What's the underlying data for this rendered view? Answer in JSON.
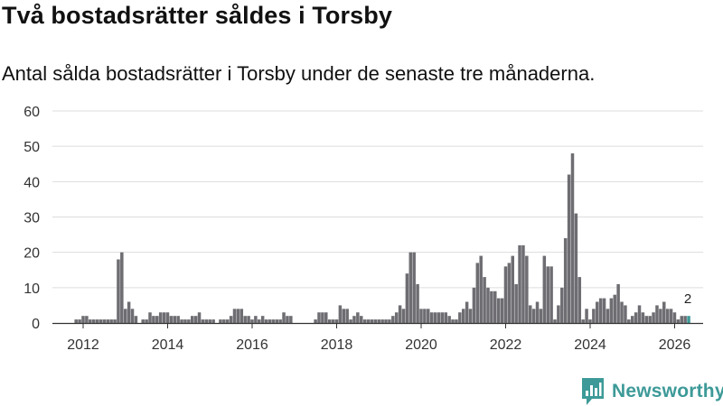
{
  "header": {
    "title": "Två bostadsrätter såldes i Torsby",
    "subtitle": "Antal sålda bostadsrätter i Torsby under de senaste tre månaderna."
  },
  "brand": {
    "name": "Newsworthy",
    "color": "#3d9a98"
  },
  "colors": {
    "bar": "#6e6d72",
    "highlight": "#3d9a98",
    "grid": "#dddddd",
    "axis": "#333333"
  },
  "chart_data": {
    "type": "bar",
    "title": "Två bostadsrätter såldes i Torsby",
    "subtitle": "Antal sålda bostadsrätter i Torsby under de senaste tre månaderna.",
    "xlabel": "",
    "ylabel": "",
    "ylim": [
      0,
      60
    ],
    "yticks": [
      0,
      10,
      20,
      30,
      40,
      50,
      60
    ],
    "xticks": [
      2012,
      2014,
      2016,
      2018,
      2020,
      2022,
      2024,
      2026
    ],
    "x_start": 2011.833,
    "x_step": 0.08333,
    "grid": true,
    "legend": "none",
    "highlight_label": "2",
    "values": [
      1,
      1,
      2,
      2,
      1,
      1,
      1,
      1,
      1,
      1,
      1,
      1,
      18,
      20,
      4,
      6,
      4,
      2,
      0,
      1,
      1,
      3,
      2,
      2,
      3,
      3,
      3,
      2,
      2,
      2,
      1,
      1,
      1,
      2,
      2,
      3,
      1,
      1,
      1,
      1,
      0,
      1,
      1,
      1,
      2,
      4,
      4,
      4,
      2,
      2,
      1,
      2,
      1,
      2,
      1,
      1,
      1,
      1,
      1,
      3,
      2,
      2,
      0,
      0,
      0,
      0,
      0,
      0,
      1,
      3,
      3,
      3,
      1,
      1,
      1,
      5,
      4,
      4,
      1,
      2,
      3,
      2,
      1,
      1,
      1,
      1,
      1,
      1,
      1,
      1,
      2,
      3,
      5,
      4,
      14,
      20,
      20,
      11,
      4,
      4,
      4,
      3,
      3,
      3,
      3,
      3,
      2,
      1,
      1,
      3,
      4,
      6,
      4,
      10,
      17,
      19,
      13,
      10,
      9,
      9,
      7,
      7,
      16,
      17,
      19,
      11,
      22,
      22,
      19,
      5,
      4,
      6,
      4,
      19,
      16,
      16,
      1,
      5,
      10,
      24,
      42,
      48,
      31,
      13,
      1,
      4,
      1,
      4,
      6,
      7,
      7,
      4,
      7,
      8,
      11,
      6,
      5,
      1,
      2,
      3,
      5,
      3,
      2,
      2,
      3,
      5,
      4,
      6,
      4,
      4,
      3,
      1,
      2,
      2,
      2
    ]
  }
}
